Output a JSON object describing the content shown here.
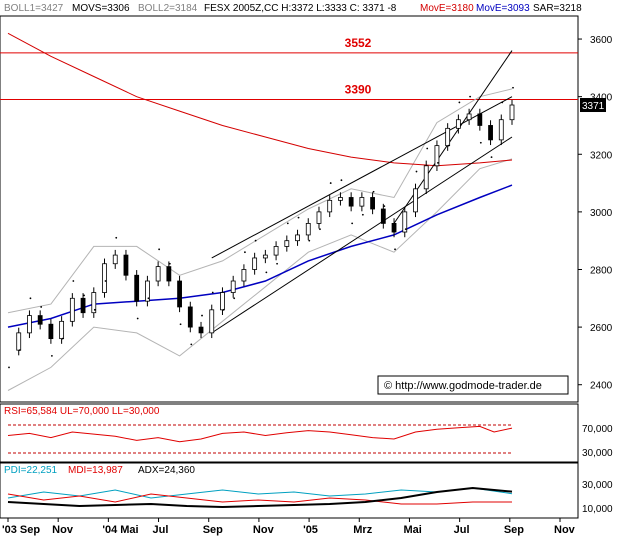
{
  "colors": {
    "price": "#000000",
    "bollinger": "#b4b4b4",
    "mov_s": "#000000",
    "mov_e_red": "#d40000",
    "mov_e_blue": "#0000c0",
    "trend": "#000000",
    "level": "#e00000",
    "rsi_line": "#e00000",
    "rsi_guide": "#c00000",
    "pdi": "#00a0c0",
    "mdi": "#e00000",
    "adx": "#000000",
    "frame": "#000000",
    "axis_bg": "#ffffff"
  },
  "header": {
    "boll1": "BOLL1=3427",
    "movs": "MOVS=3306",
    "boll2": "BOLL2=3184",
    "contract": "FESX 2005Z,CC H:3372 L:3333 C: 3371 -8",
    "move1": "MovE=3180",
    "move2": "MovE=3093",
    "sar": "SAR=3218"
  },
  "levels": [
    {
      "label": "3552",
      "value": 3552
    },
    {
      "label": "3390",
      "value": 3390
    }
  ],
  "last_price_tag": "3371",
  "copyright": "© http://www.godmode-trader.de",
  "rsi_panel": {
    "header": "RSI=65,584 UL=70,000 LL=30,000",
    "ticks": [
      "70,000",
      "30,000"
    ]
  },
  "adx_panel": {
    "pdi": "PDI=22,251",
    "mdi": "MDI=13,987",
    "adx": "ADX=24,360",
    "ticks": [
      "30,000",
      "10,000"
    ]
  },
  "chart_data": {
    "type": "candlestick",
    "ylim": [
      2340,
      3680
    ],
    "y_ticks": [
      2400,
      2600,
      2800,
      3000,
      3200,
      3400,
      3600
    ],
    "y_tick_labels": [
      "2400",
      "2600",
      "2800",
      "3000",
      "3200",
      "3400",
      "3600"
    ],
    "x_labels": [
      "'03 Sep",
      "Nov",
      "'04 Mai",
      "Jul",
      "Sep",
      "Nov",
      "'05",
      "Mrz",
      "Mai",
      "Jul",
      "Sep",
      "Nov"
    ],
    "price_path": [
      [
        0,
        2520
      ],
      [
        3,
        2580
      ],
      [
        6,
        2640
      ],
      [
        9,
        2610
      ],
      [
        12,
        2560
      ],
      [
        15,
        2620
      ],
      [
        18,
        2700
      ],
      [
        21,
        2650
      ],
      [
        24,
        2720
      ],
      [
        27,
        2820
      ],
      [
        30,
        2850
      ],
      [
        33,
        2780
      ],
      [
        36,
        2690
      ],
      [
        39,
        2760
      ],
      [
        42,
        2810
      ],
      [
        45,
        2760
      ],
      [
        48,
        2670
      ],
      [
        51,
        2600
      ],
      [
        54,
        2580
      ],
      [
        57,
        2660
      ],
      [
        60,
        2720
      ],
      [
        63,
        2760
      ],
      [
        66,
        2800
      ],
      [
        69,
        2840
      ],
      [
        72,
        2850
      ],
      [
        75,
        2880
      ],
      [
        78,
        2900
      ],
      [
        81,
        2920
      ],
      [
        84,
        2960
      ],
      [
        87,
        3000
      ],
      [
        90,
        3040
      ],
      [
        93,
        3050
      ],
      [
        96,
        3020
      ],
      [
        99,
        3050
      ],
      [
        102,
        3010
      ],
      [
        105,
        2960
      ],
      [
        108,
        2930
      ],
      [
        111,
        3000
      ],
      [
        114,
        3080
      ],
      [
        117,
        3160
      ],
      [
        120,
        3230
      ],
      [
        123,
        3290
      ],
      [
        126,
        3320
      ],
      [
        129,
        3340
      ],
      [
        132,
        3300
      ],
      [
        135,
        3250
      ],
      [
        138,
        3320
      ],
      [
        141,
        3371
      ]
    ],
    "bollinger_upper": [
      [
        0,
        2650
      ],
      [
        12,
        2680
      ],
      [
        24,
        2880
      ],
      [
        36,
        2880
      ],
      [
        48,
        2780
      ],
      [
        60,
        2830
      ],
      [
        72,
        2920
      ],
      [
        84,
        3010
      ],
      [
        96,
        3080
      ],
      [
        108,
        3050
      ],
      [
        120,
        3310
      ],
      [
        132,
        3400
      ],
      [
        141,
        3427
      ]
    ],
    "bollinger_lower": [
      [
        0,
        2380
      ],
      [
        12,
        2460
      ],
      [
        24,
        2600
      ],
      [
        36,
        2580
      ],
      [
        48,
        2500
      ],
      [
        60,
        2620
      ],
      [
        72,
        2740
      ],
      [
        84,
        2860
      ],
      [
        96,
        2920
      ],
      [
        108,
        2860
      ],
      [
        120,
        3000
      ],
      [
        132,
        3150
      ],
      [
        141,
        3184
      ]
    ],
    "mov_e_red": [
      [
        0,
        3620
      ],
      [
        12,
        3540
      ],
      [
        24,
        3470
      ],
      [
        36,
        3400
      ],
      [
        48,
        3350
      ],
      [
        60,
        3300
      ],
      [
        72,
        3260
      ],
      [
        84,
        3220
      ],
      [
        96,
        3190
      ],
      [
        108,
        3170
      ],
      [
        120,
        3160
      ],
      [
        132,
        3170
      ],
      [
        141,
        3180
      ]
    ],
    "mov_e_blue": [
      [
        0,
        2600
      ],
      [
        12,
        2630
      ],
      [
        24,
        2680
      ],
      [
        36,
        2690
      ],
      [
        48,
        2700
      ],
      [
        60,
        2720
      ],
      [
        72,
        2760
      ],
      [
        84,
        2830
      ],
      [
        96,
        2880
      ],
      [
        108,
        2920
      ],
      [
        120,
        2990
      ],
      [
        132,
        3050
      ],
      [
        141,
        3093
      ]
    ],
    "trend_lines": [
      [
        [
          57,
          2840
        ],
        [
          141,
          3400
        ]
      ],
      [
        [
          57,
          2580
        ],
        [
          141,
          3260
        ]
      ],
      [
        [
          108,
          2960
        ],
        [
          141,
          3560
        ]
      ]
    ],
    "rsi": {
      "ylim": [
        20,
        80
      ],
      "ul": 70,
      "ll": 30,
      "values": [
        [
          0,
          55
        ],
        [
          6,
          58
        ],
        [
          12,
          52
        ],
        [
          18,
          60
        ],
        [
          24,
          57
        ],
        [
          30,
          54
        ],
        [
          36,
          48
        ],
        [
          42,
          52
        ],
        [
          48,
          46
        ],
        [
          54,
          50
        ],
        [
          60,
          58
        ],
        [
          66,
          60
        ],
        [
          72,
          55
        ],
        [
          78,
          59
        ],
        [
          84,
          62
        ],
        [
          90,
          60
        ],
        [
          96,
          56
        ],
        [
          102,
          52
        ],
        [
          108,
          50
        ],
        [
          114,
          60
        ],
        [
          120,
          64
        ],
        [
          126,
          66
        ],
        [
          132,
          68
        ],
        [
          136,
          60
        ],
        [
          141,
          65.584
        ]
      ]
    },
    "adx": {
      "ylim": [
        0,
        40
      ],
      "pdi": [
        [
          0,
          18
        ],
        [
          10,
          24
        ],
        [
          20,
          20
        ],
        [
          30,
          26
        ],
        [
          40,
          18
        ],
        [
          50,
          22
        ],
        [
          60,
          26
        ],
        [
          70,
          22
        ],
        [
          80,
          24
        ],
        [
          90,
          20
        ],
        [
          100,
          22
        ],
        [
          110,
          26
        ],
        [
          120,
          24
        ],
        [
          130,
          28
        ],
        [
          141,
          22.251
        ]
      ],
      "mdi": [
        [
          0,
          22
        ],
        [
          10,
          16
        ],
        [
          20,
          20
        ],
        [
          30,
          14
        ],
        [
          40,
          22
        ],
        [
          50,
          18
        ],
        [
          60,
          14
        ],
        [
          70,
          16
        ],
        [
          80,
          14
        ],
        [
          90,
          18
        ],
        [
          100,
          16
        ],
        [
          110,
          12
        ],
        [
          120,
          12
        ],
        [
          130,
          14
        ],
        [
          141,
          13.987
        ]
      ],
      "adx_line": [
        [
          0,
          14
        ],
        [
          10,
          12
        ],
        [
          20,
          10
        ],
        [
          30,
          11
        ],
        [
          40,
          12
        ],
        [
          50,
          10
        ],
        [
          60,
          9
        ],
        [
          70,
          10
        ],
        [
          80,
          11
        ],
        [
          90,
          12
        ],
        [
          100,
          14
        ],
        [
          110,
          18
        ],
        [
          120,
          24
        ],
        [
          130,
          28
        ],
        [
          141,
          24.36
        ]
      ]
    }
  }
}
